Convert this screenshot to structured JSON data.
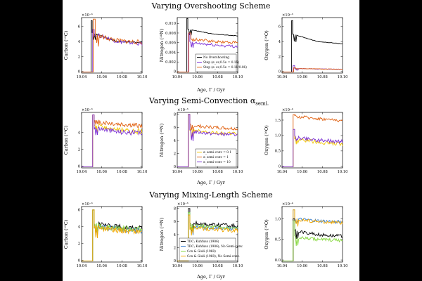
{
  "figure": {
    "row_titles": [
      "Varying Overshooting Scheme",
      "Varying Semi-Convection α",
      "Varying Mixing-Length Scheme"
    ],
    "row_title_sub": [
      "",
      "semi.",
      ""
    ],
    "xlabel": "Age, Γ / Gyr",
    "ylabels": [
      "Carbon (¹²C)",
      "Nitrogen (¹⁴N)",
      "Oxygen (¹⁶O)"
    ]
  },
  "chart_data": [
    {
      "type": "line",
      "row": 0,
      "col": 0,
      "title": "",
      "xlabel": "",
      "ylabel": "Carbon (¹²C)",
      "multiplier": "×10⁻³",
      "xlim": [
        10.04,
        10.1
      ],
      "ylim": [
        -0.2,
        7.2
      ],
      "xticks": [
        10.04,
        10.06,
        10.08,
        10.1
      ],
      "xticklabels": [
        "10.04",
        "10.06",
        "10.08",
        "10.10"
      ],
      "yticks": [
        0,
        2,
        4,
        6
      ],
      "yticklabels": [
        "0",
        "2",
        "4",
        "6"
      ],
      "series": [
        {
          "color": "#000000",
          "style": "decay",
          "x0": 10.0495,
          "x1": 10.0505,
          "peak": 6.8,
          "tail": [
            5.2,
            4.0,
            3.9
          ],
          "noise": 0.08
        },
        {
          "color": "#7b2fd6",
          "style": "decay",
          "x0": 10.051,
          "x1": 10.0525,
          "peak": 5.6,
          "tail": [
            5.0,
            4.0,
            3.7
          ],
          "noise": 0.25
        },
        {
          "color": "#e06010",
          "style": "decay",
          "x0": 10.0515,
          "x1": 10.0535,
          "peak": 7.0,
          "tail": [
            4.8,
            4.1,
            3.9
          ],
          "noise": 0.3
        }
      ],
      "legend": null
    },
    {
      "type": "line",
      "row": 0,
      "col": 1,
      "title": "",
      "xlabel": "",
      "ylabel": "Nitrogen (¹⁴N)",
      "multiplier": "",
      "xlim": [
        10.04,
        10.1
      ],
      "ylim": [
        -0.0003,
        0.0112
      ],
      "xticks": [
        10.04,
        10.06,
        10.08,
        10.1
      ],
      "xticklabels": [
        "10.04",
        "10.06",
        "10.08",
        "10.10"
      ],
      "yticks": [
        0,
        0.002,
        0.004,
        0.006,
        0.008,
        0.01
      ],
      "yticklabels": [
        "0",
        "0.002",
        "0.004",
        "0.006",
        "0.008",
        "0.010"
      ],
      "series": [
        {
          "color": "#000000",
          "style": "decay",
          "x0": 10.0495,
          "x1": 10.0505,
          "peak": 0.011,
          "tail": [
            0.0088,
            0.0078,
            0.0074
          ],
          "noise": 5e-05
        },
        {
          "color": "#7b2fd6",
          "style": "decay",
          "x0": 10.051,
          "x1": 10.0525,
          "peak": 0.008,
          "tail": [
            0.006,
            0.0055,
            0.0052
          ],
          "noise": 0.0003
        },
        {
          "color": "#e06010",
          "style": "decay",
          "x0": 10.0515,
          "x1": 10.0535,
          "peak": 0.008,
          "tail": [
            0.0068,
            0.0062,
            0.006
          ],
          "noise": 0.0003
        }
      ],
      "legend": {
        "position": "bottom-right",
        "entries": [
          {
            "label": "No Overshooting",
            "color": "#000000"
          },
          {
            "label": "Step (α_ov,0.5ν = 0.15)",
            "color": "#7b2fd6"
          },
          {
            "label": "Step (α_ov,0.5ν = 0.11/0.06)",
            "color": "#e06010"
          }
        ]
      }
    },
    {
      "type": "line",
      "row": 0,
      "col": 2,
      "title": "",
      "xlabel": "",
      "ylabel": "Oxygen (¹⁶O)",
      "multiplier": "×10⁻³",
      "xlim": [
        10.04,
        10.1
      ],
      "ylim": [
        -0.2,
        7.2
      ],
      "xticks": [
        10.04,
        10.06,
        10.08,
        10.1
      ],
      "xticklabels": [
        "10.04",
        "10.06",
        "10.08",
        "10.10"
      ],
      "yticks": [
        0,
        2,
        4,
        6
      ],
      "yticklabels": [
        "0",
        "2",
        "4",
        "6"
      ],
      "series": [
        {
          "color": "#000000",
          "style": "decay",
          "x0": 10.0495,
          "x1": 10.0505,
          "peak": 6.8,
          "tail": [
            5.0,
            4.0,
            3.7
          ],
          "noise": 0.03
        },
        {
          "color": "#7b2fd6",
          "style": "decay",
          "x0": 10.051,
          "x1": 10.0525,
          "peak": 0.8,
          "tail": [
            0.4,
            0.35,
            0.3
          ],
          "noise": 0.03
        },
        {
          "color": "#e06010",
          "style": "decay",
          "x0": 10.0515,
          "x1": 10.0535,
          "peak": 0.5,
          "tail": [
            0.4,
            0.35,
            0.3
          ],
          "noise": 0.03
        }
      ],
      "legend": null
    },
    {
      "type": "line",
      "row": 1,
      "col": 0,
      "title": "",
      "xlabel": "",
      "ylabel": "Carbon (¹²C)",
      "multiplier": "×10⁻³",
      "xlim": [
        10.04,
        10.1
      ],
      "ylim": [
        -0.2,
        6.4
      ],
      "xticks": [
        10.04,
        10.06,
        10.08,
        10.1
      ],
      "xticklabels": [
        "10.04",
        "10.06",
        "10.08",
        "10.10"
      ],
      "yticks": [
        0,
        2,
        4
      ],
      "yticklabels": [
        "0",
        "2",
        "4"
      ],
      "series": [
        {
          "color": "#e06010",
          "style": "decay",
          "x0": 10.051,
          "x1": 10.0525,
          "peak": 6.1,
          "tail": [
            5.3,
            5.0,
            4.8
          ],
          "noise": 0.3
        },
        {
          "color": "#f2c500",
          "style": "decay",
          "x0": 10.051,
          "x1": 10.0525,
          "peak": 6.1,
          "tail": [
            4.8,
            4.3,
            4.1
          ],
          "noise": 0.3
        },
        {
          "color": "#7b2fd6",
          "style": "decay",
          "x0": 10.051,
          "x1": 10.0525,
          "peak": 6.1,
          "tail": [
            4.6,
            4.1,
            3.9
          ],
          "noise": 0.3
        }
      ],
      "legend": null
    },
    {
      "type": "line",
      "row": 1,
      "col": 1,
      "title": "",
      "xlabel": "",
      "ylabel": "Nitrogen (¹⁴N)",
      "multiplier": "×10⁻³",
      "xlim": [
        10.04,
        10.1
      ],
      "ylim": [
        -0.2,
        8.3
      ],
      "xticks": [
        10.04,
        10.06,
        10.08,
        10.1
      ],
      "xticklabels": [
        "10.04",
        "10.06",
        "10.08",
        "10.10"
      ],
      "yticks": [
        0,
        2,
        4,
        6,
        8
      ],
      "yticklabels": [
        "0",
        "2",
        "4",
        "6",
        "8"
      ],
      "series": [
        {
          "color": "#e06010",
          "style": "decay",
          "x0": 10.051,
          "x1": 10.0525,
          "peak": 8.0,
          "tail": [
            6.3,
            6.0,
            5.8
          ],
          "noise": 0.25
        },
        {
          "color": "#f2c500",
          "style": "decay",
          "x0": 10.051,
          "x1": 10.0525,
          "peak": 8.0,
          "tail": [
            5.6,
            5.2,
            5.0
          ],
          "noise": 0.25
        },
        {
          "color": "#7b2fd6",
          "style": "decay",
          "x0": 10.051,
          "x1": 10.0525,
          "peak": 8.0,
          "tail": [
            5.4,
            5.0,
            4.9
          ],
          "noise": 0.25
        }
      ],
      "legend": {
        "position": "bottom-right",
        "entries": [
          {
            "label": "α_semi-conv = 0.1",
            "color": "#f2c500"
          },
          {
            "label": "α_semi-conv = 1",
            "color": "#e06010"
          },
          {
            "label": "α_semi-conv = 10",
            "color": "#7b2fd6"
          }
        ]
      }
    },
    {
      "type": "line",
      "row": 1,
      "col": 2,
      "title": "",
      "xlabel": "",
      "ylabel": "Oxygen (¹⁶O)",
      "multiplier": "×10⁻⁴",
      "xlim": [
        10.04,
        10.1
      ],
      "ylim": [
        -0.05,
        1.75
      ],
      "xticks": [
        10.04,
        10.06,
        10.08,
        10.1
      ],
      "xticklabels": [
        "10.04",
        "10.06",
        "10.08",
        "10.10"
      ],
      "yticks": [
        0,
        0.5,
        1.0,
        1.5
      ],
      "yticklabels": [
        "0",
        "0.5",
        "1.0",
        "1.5"
      ],
      "series": [
        {
          "color": "#e06010",
          "style": "decay",
          "x0": 10.051,
          "x1": 10.0525,
          "peak": 1.68,
          "tail": [
            1.62,
            1.55,
            1.48
          ],
          "noise": 0.05
        },
        {
          "color": "#f2c500",
          "style": "decay",
          "x0": 10.051,
          "x1": 10.0525,
          "peak": 1.2,
          "tail": [
            0.9,
            0.78,
            0.72
          ],
          "noise": 0.06
        },
        {
          "color": "#7b2fd6",
          "style": "decay",
          "x0": 10.051,
          "x1": 10.0525,
          "peak": 1.2,
          "tail": [
            0.95,
            0.85,
            0.8
          ],
          "noise": 0.06
        }
      ],
      "legend": null
    },
    {
      "type": "line",
      "row": 2,
      "col": 0,
      "title": "",
      "xlabel": "",
      "ylabel": "Carbon (¹²C)",
      "multiplier": "×10⁻³",
      "xlim": [
        10.04,
        10.1
      ],
      "ylim": [
        -0.2,
        6.4
      ],
      "xticks": [
        10.04,
        10.06,
        10.08,
        10.1
      ],
      "xticklabels": [
        "10.04",
        "10.06",
        "10.08",
        "10.10"
      ],
      "yticks": [
        0,
        2,
        4,
        6
      ],
      "yticklabels": [
        "0",
        "2",
        "4",
        "6"
      ],
      "series": [
        {
          "color": "#000000",
          "style": "decay",
          "x0": 10.051,
          "x1": 10.0525,
          "peak": 6.0,
          "tail": [
            4.3,
            4.0,
            3.8
          ],
          "noise": 0.3
        },
        {
          "color": "#3a7fd0",
          "style": "decay",
          "x0": 10.051,
          "x1": 10.0525,
          "peak": 6.0,
          "tail": [
            4.0,
            3.7,
            3.5
          ],
          "noise": 0.35
        },
        {
          "color": "#88d840",
          "style": "decay",
          "x0": 10.051,
          "x1": 10.0525,
          "peak": 6.0,
          "tail": [
            4.1,
            3.8,
            3.7
          ],
          "noise": 0.35
        },
        {
          "color": "#f2a800",
          "style": "decay",
          "x0": 10.051,
          "x1": 10.0525,
          "peak": 6.0,
          "tail": [
            4.0,
            3.6,
            3.4
          ],
          "noise": 0.35
        }
      ],
      "legend": null
    },
    {
      "type": "line",
      "row": 2,
      "col": 1,
      "title": "",
      "xlabel": "",
      "ylabel": "Nitrogen (¹⁴N)",
      "multiplier": "×10⁻³",
      "xlim": [
        10.04,
        10.1
      ],
      "ylim": [
        -0.2,
        8.3
      ],
      "xticks": [
        10.04,
        10.06,
        10.08,
        10.1
      ],
      "xticklabels": [
        "10.04",
        "10.06",
        "10.08",
        "10.10"
      ],
      "yticks": [
        0,
        2,
        4,
        6,
        8
      ],
      "yticklabels": [
        "0",
        "2",
        "4",
        "6",
        "8"
      ],
      "series": [
        {
          "color": "#000000",
          "style": "decay",
          "x0": 10.051,
          "x1": 10.0525,
          "peak": 8.0,
          "tail": [
            5.8,
            5.5,
            5.3
          ],
          "noise": 0.3
        },
        {
          "color": "#3a7fd0",
          "style": "decay",
          "x0": 10.051,
          "x1": 10.0525,
          "peak": 7.4,
          "tail": [
            5.2,
            5.0,
            4.9
          ],
          "noise": 0.3
        },
        {
          "color": "#88d840",
          "style": "decay",
          "x0": 10.051,
          "x1": 10.0525,
          "peak": 7.4,
          "tail": [
            5.4,
            5.1,
            4.9
          ],
          "noise": 0.3
        },
        {
          "color": "#f2a800",
          "style": "decay",
          "x0": 10.051,
          "x1": 10.0525,
          "peak": 7.0,
          "tail": [
            5.0,
            4.8,
            4.6
          ],
          "noise": 0.3
        }
      ],
      "legend": {
        "position": "bottom-left",
        "entries": [
          {
            "label": "TDC; Kuhfuss (1986)",
            "color": "#000000"
          },
          {
            "label": "TDC; Kuhfuss (1986); No Semi-conv.",
            "color": "#3a7fd0"
          },
          {
            "label": "Cox & Giuli (1968)",
            "color": "#88d840"
          },
          {
            "label": "Cox & Giuli (1968); No Semi-conv.",
            "color": "#f2a800"
          }
        ]
      }
    },
    {
      "type": "line",
      "row": 2,
      "col": 2,
      "title": "",
      "xlabel": "",
      "ylabel": "Oxygen (¹⁶O)",
      "multiplier": "×10⁻⁴",
      "xlim": [
        10.04,
        10.1
      ],
      "ylim": [
        -0.05,
        1.3
      ],
      "xticks": [
        10.04,
        10.06,
        10.08,
        10.1
      ],
      "xticklabels": [
        "10.04",
        "10.06",
        "10.08",
        "10.10"
      ],
      "yticks": [
        0,
        0.5,
        1.0
      ],
      "yticklabels": [
        "0.0",
        "0.5",
        "1.0"
      ],
      "series": [
        {
          "color": "#3a7fd0",
          "style": "decay",
          "x0": 10.051,
          "x1": 10.0525,
          "peak": 1.22,
          "tail": [
            1.0,
            0.95,
            0.92
          ],
          "noise": 0.04
        },
        {
          "color": "#f2a800",
          "style": "decay",
          "x0": 10.051,
          "x1": 10.0525,
          "peak": 1.22,
          "tail": [
            0.98,
            0.93,
            0.9
          ],
          "noise": 0.04
        },
        {
          "color": "#000000",
          "style": "decay",
          "x0": 10.051,
          "x1": 10.0525,
          "peak": 1.0,
          "tail": [
            0.7,
            0.62,
            0.58
          ],
          "noise": 0.04
        },
        {
          "color": "#88d840",
          "style": "decay",
          "x0": 10.051,
          "x1": 10.0525,
          "peak": 0.95,
          "tail": [
            0.55,
            0.5,
            0.48
          ],
          "noise": 0.04
        }
      ],
      "legend": null
    }
  ]
}
